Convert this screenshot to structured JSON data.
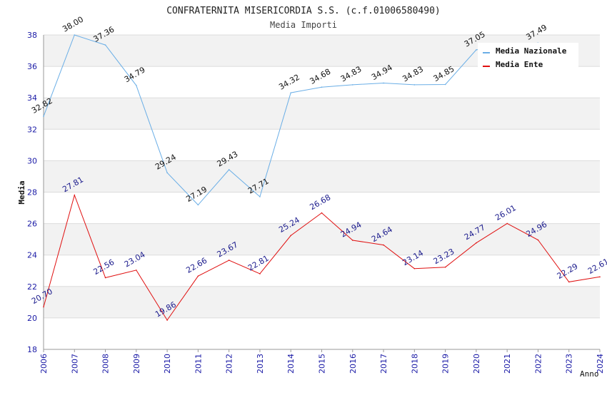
{
  "chart_data": {
    "type": "line",
    "title": "CONFRATERNITA MISERICORDIA S.S. (c.f.01006580490)",
    "subtitle": "Media Importi",
    "ylabel": "Media",
    "xlabel": "Anno",
    "ylim": [
      18,
      38
    ],
    "yticks": [
      "18",
      "20",
      "22",
      "24",
      "26",
      "28",
      "30",
      "32",
      "34",
      "36",
      "38"
    ],
    "categories": [
      "2006",
      "2007",
      "2008",
      "2009",
      "2010",
      "2011",
      "2012",
      "2013",
      "2014",
      "2015",
      "2016",
      "2017",
      "2018",
      "2019",
      "2020",
      "2021",
      "2022",
      "2023",
      "2024"
    ],
    "grid": true,
    "legend_position": "top-right",
    "series": [
      {
        "name": "Media Nazionale",
        "color": "#6aaee6",
        "values": [
          32.82,
          38.0,
          37.36,
          34.79,
          29.24,
          27.19,
          29.43,
          27.71,
          34.32,
          34.68,
          34.83,
          34.94,
          34.83,
          34.85,
          37.05,
          null,
          37.49,
          null,
          null
        ],
        "labels": [
          "32.82",
          "38.00",
          "37.36",
          "34.79",
          "29.24",
          "27.19",
          "29.43",
          "27.71",
          "34.32",
          "34.68",
          "34.83",
          "34.94",
          "34.83",
          "34.85",
          "37.05",
          "",
          "37.49",
          "",
          ""
        ]
      },
      {
        "name": "Media Ente",
        "color": "#e01010",
        "values": [
          20.7,
          27.81,
          22.56,
          23.04,
          19.86,
          22.66,
          23.67,
          22.81,
          25.24,
          26.68,
          24.94,
          24.64,
          23.14,
          23.23,
          24.77,
          26.01,
          24.96,
          22.29,
          22.61
        ],
        "labels": [
          "20.70",
          "27.81",
          "22.56",
          "23.04",
          "19.86",
          "22.66",
          "23.67",
          "22.81",
          "25.24",
          "26.68",
          "24.94",
          "24.64",
          "23.14",
          "23.23",
          "24.77",
          "26.01",
          "24.96",
          "22.29",
          "22.61"
        ]
      }
    ]
  }
}
